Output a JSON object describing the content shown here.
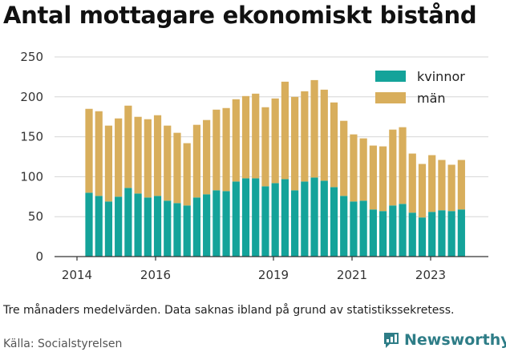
{
  "title": "Antal mottagare ekonomiskt bistånd",
  "note": "Tre månaders medelvärden. Data saknas ibland på grund av statistikssekretess.",
  "source": "Källa: Socialstyrelsen",
  "brand": {
    "name": "Newsworthy",
    "color": "#2e7d87",
    "icon": "newsworthy-logo-icon"
  },
  "chart_data": {
    "type": "bar",
    "stacked": true,
    "x_ticks": [
      "2014",
      "2016",
      "2019",
      "2021",
      "2023"
    ],
    "y_ticks": [
      "0",
      "50",
      "100",
      "150",
      "200",
      "250"
    ],
    "ylim": [
      0,
      250
    ],
    "grid": "horizontal",
    "legend_position": "top-right",
    "colors": {
      "kvinnor": "#14a39a",
      "män": "#d8ae5c"
    },
    "series": [
      {
        "name": "kvinnor",
        "values": [
          80,
          76,
          69,
          75,
          86,
          79,
          74,
          76,
          70,
          67,
          64,
          74,
          78,
          83,
          82,
          94,
          98,
          98,
          88,
          92,
          97,
          83,
          94,
          99,
          95,
          87,
          76,
          69,
          70,
          59,
          57,
          64,
          66,
          55,
          49,
          56,
          58,
          57,
          59
        ]
      },
      {
        "name": "män",
        "values": [
          105,
          106,
          95,
          98,
          103,
          96,
          98,
          101,
          94,
          88,
          78,
          91,
          93,
          101,
          104,
          103,
          103,
          106,
          99,
          106,
          122,
          117,
          113,
          122,
          114,
          106,
          94,
          84,
          78,
          80,
          81,
          95,
          96,
          74,
          67,
          71,
          63,
          58,
          62
        ]
      }
    ]
  }
}
